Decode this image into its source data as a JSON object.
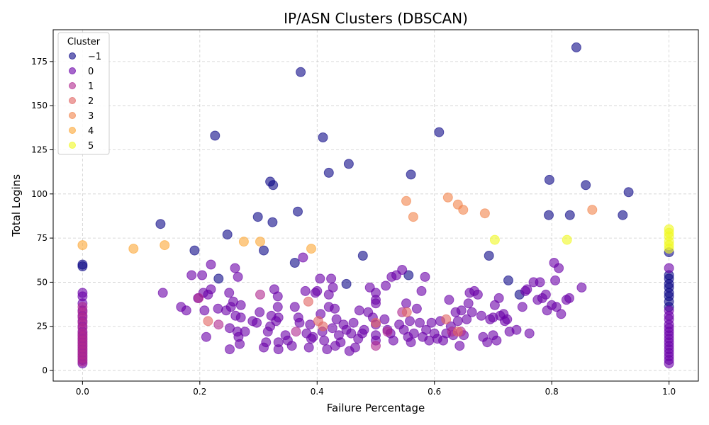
{
  "chart_data": {
    "type": "scatter",
    "title": "IP/ASN Clusters (DBSCAN)",
    "xlabel": "Failure Percentage",
    "ylabel": "Total Logins",
    "xlim": [
      -0.05,
      1.05
    ],
    "ylim": [
      -6,
      193
    ],
    "x_ticks": [
      0.0,
      0.2,
      0.4,
      0.6,
      0.8,
      1.0
    ],
    "x_tick_labels": [
      "0.0",
      "0.2",
      "0.4",
      "0.6",
      "0.8",
      "1.0"
    ],
    "y_ticks": [
      0,
      25,
      50,
      75,
      100,
      125,
      150,
      175
    ],
    "y_tick_labels": [
      "0",
      "25",
      "50",
      "75",
      "100",
      "125",
      "150",
      "175"
    ],
    "grid": true,
    "legend": {
      "title": "Cluster",
      "placement": "top-left"
    },
    "series": [
      {
        "name": "−1",
        "color": "#0d0887",
        "points": [
          [
            0.842,
            183
          ],
          [
            0.372,
            169
          ],
          [
            0.608,
            135
          ],
          [
            0.226,
            133
          ],
          [
            0.41,
            132
          ],
          [
            0.454,
            117
          ],
          [
            0.42,
            112
          ],
          [
            0.56,
            111
          ],
          [
            0.32,
            107
          ],
          [
            0.325,
            105
          ],
          [
            0.796,
            108
          ],
          [
            0.858,
            105
          ],
          [
            0.931,
            101
          ],
          [
            0.367,
            90
          ],
          [
            0.299,
            87
          ],
          [
            0.795,
            88
          ],
          [
            0.831,
            88
          ],
          [
            0.921,
            88
          ],
          [
            0.133,
            83
          ],
          [
            0.324,
            84
          ],
          [
            0.247,
            77
          ],
          [
            0.191,
            68
          ],
          [
            0.309,
            68
          ],
          [
            0.478,
            65
          ],
          [
            0.693,
            65
          ],
          [
            0.362,
            61
          ],
          [
            0.0,
            60
          ],
          [
            0.0,
            59
          ],
          [
            0.232,
            52
          ],
          [
            0.556,
            54
          ],
          [
            0.45,
            49
          ],
          [
            0.726,
            51
          ],
          [
            0.745,
            43
          ],
          [
            1.0,
            67
          ],
          [
            1.0,
            54
          ],
          [
            1.0,
            52
          ],
          [
            1.0,
            49
          ],
          [
            1.0,
            47
          ],
          [
            1.0,
            44
          ],
          [
            1.0,
            42
          ],
          [
            1.0,
            39
          ],
          [
            1.0,
            36
          ]
        ]
      },
      {
        "name": "0",
        "color": "#6a00a8",
        "points": [
          [
            0.137,
            44
          ],
          [
            0.168,
            36
          ],
          [
            0.177,
            34
          ],
          [
            0.186,
            54
          ],
          [
            0.197,
            41
          ],
          [
            0.204,
            54
          ],
          [
            0.206,
            44
          ],
          [
            0.208,
            34
          ],
          [
            0.211,
            19
          ],
          [
            0.214,
            43
          ],
          [
            0.219,
            46
          ],
          [
            0.219,
            60
          ],
          [
            0.231,
            35
          ],
          [
            0.245,
            34
          ],
          [
            0.25,
            44
          ],
          [
            0.251,
            24
          ],
          [
            0.251,
            12
          ],
          [
            0.253,
            36
          ],
          [
            0.257,
            39
          ],
          [
            0.26,
            58
          ],
          [
            0.261,
            31
          ],
          [
            0.264,
            22
          ],
          [
            0.265,
            53
          ],
          [
            0.266,
            19
          ],
          [
            0.268,
            15
          ],
          [
            0.27,
            30
          ],
          [
            0.27,
            37
          ],
          [
            0.277,
            22
          ],
          [
            0.29,
            28
          ],
          [
            0.297,
            27
          ],
          [
            0.302,
            33
          ],
          [
            0.309,
            13
          ],
          [
            0.313,
            16
          ],
          [
            0.316,
            22
          ],
          [
            0.32,
            25
          ],
          [
            0.322,
            31
          ],
          [
            0.327,
            46
          ],
          [
            0.33,
            28
          ],
          [
            0.333,
            42
          ],
          [
            0.333,
            36
          ],
          [
            0.334,
            30
          ],
          [
            0.334,
            16
          ],
          [
            0.334,
            12
          ],
          [
            0.346,
            20
          ],
          [
            0.35,
            17
          ],
          [
            0.357,
            14
          ],
          [
            0.362,
            36
          ],
          [
            0.368,
            30
          ],
          [
            0.37,
            27
          ],
          [
            0.376,
            64
          ],
          [
            0.38,
            45
          ],
          [
            0.382,
            21
          ],
          [
            0.386,
            13
          ],
          [
            0.388,
            26
          ],
          [
            0.39,
            18
          ],
          [
            0.393,
            19
          ],
          [
            0.397,
            44
          ],
          [
            0.4,
            45
          ],
          [
            0.405,
            52
          ],
          [
            0.406,
            32
          ],
          [
            0.409,
            22
          ],
          [
            0.412,
            17
          ],
          [
            0.417,
            12
          ],
          [
            0.42,
            43
          ],
          [
            0.42,
            36
          ],
          [
            0.424,
            52
          ],
          [
            0.426,
            24
          ],
          [
            0.427,
            47
          ],
          [
            0.43,
            35
          ],
          [
            0.431,
            14
          ],
          [
            0.433,
            29
          ],
          [
            0.437,
            20
          ],
          [
            0.44,
            16
          ],
          [
            0.445,
            26
          ],
          [
            0.45,
            23
          ],
          [
            0.455,
            11
          ],
          [
            0.458,
            21
          ],
          [
            0.462,
            27
          ],
          [
            0.465,
            13
          ],
          [
            0.47,
            18
          ],
          [
            0.472,
            34
          ],
          [
            0.477,
            21
          ],
          [
            0.48,
            23
          ],
          [
            0.487,
            33
          ],
          [
            0.49,
            47
          ],
          [
            0.495,
            30
          ],
          [
            0.5,
            44
          ],
          [
            0.5,
            40
          ],
          [
            0.5,
            38
          ],
          [
            0.5,
            26
          ],
          [
            0.5,
            20
          ],
          [
            0.5,
            17
          ],
          [
            0.515,
            29
          ],
          [
            0.517,
            48
          ],
          [
            0.52,
            23
          ],
          [
            0.525,
            21
          ],
          [
            0.527,
            53
          ],
          [
            0.53,
            17
          ],
          [
            0.535,
            54
          ],
          [
            0.54,
            26
          ],
          [
            0.545,
            57
          ],
          [
            0.548,
            23
          ],
          [
            0.552,
            38
          ],
          [
            0.555,
            19
          ],
          [
            0.558,
            28
          ],
          [
            0.56,
            16
          ],
          [
            0.565,
            21
          ],
          [
            0.57,
            35
          ],
          [
            0.575,
            27
          ],
          [
            0.578,
            45
          ],
          [
            0.58,
            19
          ],
          [
            0.584,
            53
          ],
          [
            0.586,
            23
          ],
          [
            0.591,
            17
          ],
          [
            0.595,
            27
          ],
          [
            0.6,
            21
          ],
          [
            0.605,
            18
          ],
          [
            0.61,
            28
          ],
          [
            0.615,
            17
          ],
          [
            0.62,
            21
          ],
          [
            0.625,
            40
          ],
          [
            0.628,
            25
          ],
          [
            0.632,
            20
          ],
          [
            0.636,
            33
          ],
          [
            0.64,
            28
          ],
          [
            0.643,
            14
          ],
          [
            0.646,
            34
          ],
          [
            0.65,
            20
          ],
          [
            0.655,
            29
          ],
          [
            0.658,
            38
          ],
          [
            0.66,
            44
          ],
          [
            0.664,
            33
          ],
          [
            0.668,
            45
          ],
          [
            0.674,
            43
          ],
          [
            0.68,
            31
          ],
          [
            0.683,
            19
          ],
          [
            0.69,
            16
          ],
          [
            0.695,
            29
          ],
          [
            0.7,
            30
          ],
          [
            0.7,
            20
          ],
          [
            0.703,
            37
          ],
          [
            0.706,
            17
          ],
          [
            0.71,
            41
          ],
          [
            0.712,
            31
          ],
          [
            0.718,
            32
          ],
          [
            0.72,
            28
          ],
          [
            0.724,
            29
          ],
          [
            0.728,
            22
          ],
          [
            0.74,
            23
          ],
          [
            0.75,
            36
          ],
          [
            0.755,
            45
          ],
          [
            0.758,
            46
          ],
          [
            0.762,
            21
          ],
          [
            0.769,
            50
          ],
          [
            0.776,
            40
          ],
          [
            0.78,
            50
          ],
          [
            0.784,
            41
          ],
          [
            0.79,
            43
          ],
          [
            0.792,
            34
          ],
          [
            0.8,
            37
          ],
          [
            0.804,
            61
          ],
          [
            0.806,
            51
          ],
          [
            0.808,
            36
          ],
          [
            0.812,
            58
          ],
          [
            0.816,
            32
          ],
          [
            0.825,
            40
          ],
          [
            0.83,
            41
          ],
          [
            0.851,
            47
          ],
          [
            0.0,
            44
          ],
          [
            0.0,
            42
          ],
          [
            0.0,
            38
          ],
          [
            0.0,
            34
          ],
          [
            0.0,
            31
          ],
          [
            0.0,
            28
          ],
          [
            0.0,
            25
          ],
          [
            0.0,
            22
          ],
          [
            0.0,
            20
          ],
          [
            0.0,
            18
          ],
          [
            0.0,
            16
          ],
          [
            0.0,
            14
          ],
          [
            0.0,
            12
          ],
          [
            0.0,
            10
          ],
          [
            0.0,
            8
          ],
          [
            0.0,
            6
          ],
          [
            0.0,
            4
          ],
          [
            1.0,
            58
          ],
          [
            1.0,
            34
          ],
          [
            1.0,
            31
          ],
          [
            1.0,
            29
          ],
          [
            1.0,
            26
          ],
          [
            1.0,
            24
          ],
          [
            1.0,
            22
          ],
          [
            1.0,
            20
          ],
          [
            1.0,
            18
          ],
          [
            1.0,
            16
          ],
          [
            1.0,
            14
          ],
          [
            1.0,
            12
          ],
          [
            1.0,
            10
          ],
          [
            1.0,
            8
          ],
          [
            1.0,
            6
          ],
          [
            1.0,
            4
          ]
        ]
      },
      {
        "name": "1",
        "color": "#b12a90",
        "points": [
          [
            0.0,
            36
          ],
          [
            0.0,
            33
          ],
          [
            0.0,
            30
          ],
          [
            0.0,
            27
          ],
          [
            0.0,
            24
          ],
          [
            0.0,
            21
          ],
          [
            0.0,
            19
          ],
          [
            0.0,
            17
          ],
          [
            0.0,
            15
          ],
          [
            0.0,
            13
          ],
          [
            0.0,
            11
          ],
          [
            0.0,
            9
          ],
          [
            0.0,
            7
          ],
          [
            0.0,
            5
          ],
          [
            0.198,
            41
          ],
          [
            0.232,
            26
          ],
          [
            0.303,
            43
          ],
          [
            0.364,
            22
          ],
          [
            0.5,
            14
          ],
          [
            0.52,
            22
          ],
          [
            0.545,
            33
          ],
          [
            0.63,
            22
          ],
          [
            0.645,
            22
          ]
        ]
      },
      {
        "name": "2",
        "color": "#e16462",
        "points": [
          [
            0.214,
            28
          ],
          [
            0.385,
            39
          ],
          [
            0.402,
            28
          ],
          [
            0.41,
            25
          ],
          [
            0.5,
            27
          ],
          [
            0.553,
            33
          ],
          [
            0.62,
            29
          ],
          [
            0.64,
            22
          ]
        ]
      },
      {
        "name": "3",
        "color": "#f1844b",
        "points": [
          [
            0.552,
            96
          ],
          [
            0.564,
            87
          ],
          [
            0.623,
            98
          ],
          [
            0.64,
            94
          ],
          [
            0.649,
            91
          ],
          [
            0.686,
            89
          ],
          [
            0.869,
            91
          ]
        ]
      },
      {
        "name": "4",
        "color": "#fca636",
        "points": [
          [
            0.0,
            71
          ],
          [
            0.087,
            69
          ],
          [
            0.14,
            71
          ],
          [
            0.275,
            73
          ],
          [
            0.303,
            73
          ],
          [
            0.39,
            69
          ]
        ]
      },
      {
        "name": "5",
        "color": "#f0f921",
        "points": [
          [
            0.703,
            74
          ],
          [
            0.826,
            74
          ],
          [
            1.0,
            80
          ],
          [
            1.0,
            78
          ],
          [
            1.0,
            76
          ],
          [
            1.0,
            73
          ],
          [
            1.0,
            71
          ],
          [
            1.0,
            69
          ]
        ]
      }
    ]
  }
}
